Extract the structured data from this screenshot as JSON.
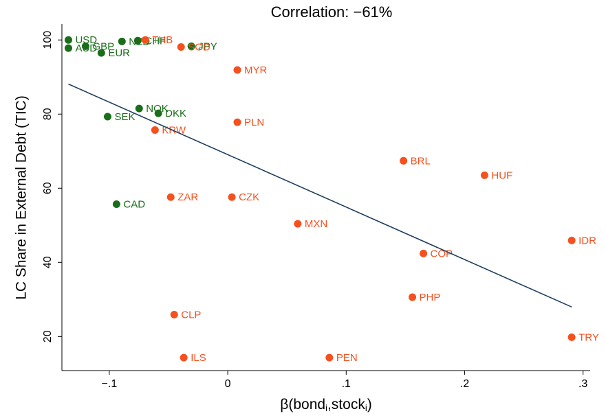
{
  "chart_data": {
    "type": "scatter",
    "title": "Correlation: −61%",
    "xlabel": [
      "β(bond",
      "i",
      ",stock",
      "i",
      ")"
    ],
    "ylabel": "LC Share in External Debt (TIC)",
    "xlim": [
      -0.14,
      0.306
    ],
    "ylim": [
      10.8,
      104.3
    ],
    "xticks": [
      {
        "value": -0.1,
        "label": "−.1"
      },
      0,
      {
        "value": 0.1,
        "label": ".1"
      },
      {
        "value": 0.2,
        "label": ".2"
      },
      {
        "value": 0.3,
        "label": ".3"
      }
    ],
    "yticks": [
      20,
      40,
      60,
      80,
      100
    ],
    "series": [
      {
        "color": "#1a6e1a",
        "labels": [
          "USD",
          "AUD",
          "GBP",
          "EUR",
          "NZD",
          "CHF",
          "JPY",
          "NOK",
          "DKK",
          "SEK",
          "CAD"
        ],
        "x": [
          -0.1345,
          -0.1345,
          -0.12,
          -0.1067,
          -0.0893,
          -0.0759,
          -0.0307,
          -0.0748,
          -0.0586,
          -0.1014,
          -0.0939
        ],
        "values": [
          100,
          97.8,
          98.3,
          96.5,
          99.6,
          99.8,
          98.3,
          81.5,
          80.2,
          79.3,
          55.7
        ]
      },
      {
        "color": "#f5501e",
        "labels": [
          "THB",
          "SGD",
          "MYR",
          "PLN",
          "KRW",
          "BRL",
          "HUF",
          "ZAR",
          "CZK",
          "MXN",
          "IDR",
          "COP",
          "PHP",
          "CLP",
          "TRY",
          "ILS",
          "PEN"
        ],
        "x": [
          -0.0696,
          -0.0394,
          0.0081,
          0.0081,
          -0.0614,
          0.1484,
          0.2168,
          -0.0481,
          0.0035,
          0.0591,
          0.2904,
          0.1652,
          0.1559,
          -0.0452,
          0.2904,
          -0.0371,
          0.0858
        ],
        "values": [
          100,
          98.1,
          91.9,
          77.8,
          75.7,
          67.4,
          63.5,
          57.6,
          57.6,
          50.4,
          45.9,
          42.4,
          30.6,
          25.9,
          19.8,
          14.3,
          14.3
        ]
      }
    ],
    "fit": {
      "color": "#1f3f5f",
      "x": [
        -0.1345,
        0.2904
      ],
      "values": [
        88.1,
        27.96
      ]
    }
  }
}
